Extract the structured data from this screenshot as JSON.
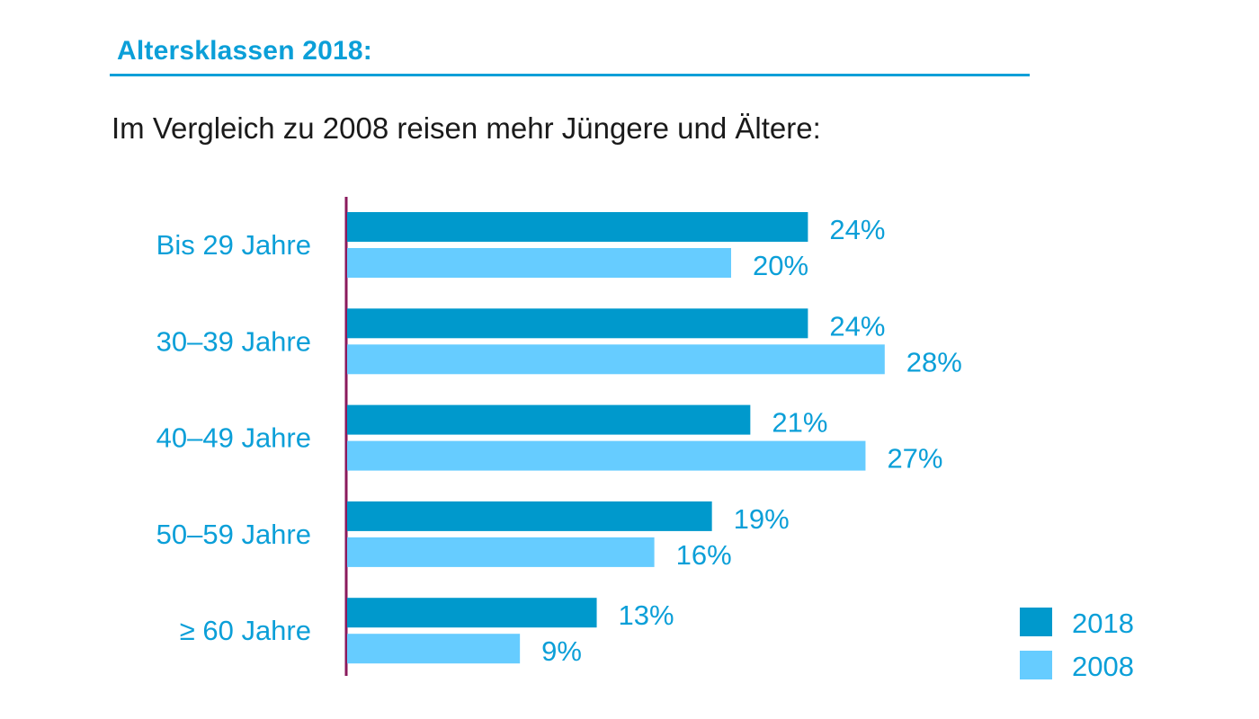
{
  "title": "Altersklassen 2018:",
  "subtitle": "Im Vergleich zu 2008 reisen mehr Jüngere und Ältere:",
  "colors": {
    "accent": "#0b9fd8",
    "series_2018": "#0099cc",
    "series_2008": "#66ccff",
    "axis": "#8a1a5c"
  },
  "chart_data": {
    "type": "bar",
    "orientation": "horizontal",
    "categories": [
      "Bis 29 Jahre",
      "30–39 Jahre",
      "40–49 Jahre",
      "50–59 Jahre",
      "≥ 60 Jahre"
    ],
    "series": [
      {
        "name": "2018",
        "values": [
          24,
          24,
          21,
          19,
          13
        ],
        "labels": [
          "24%",
          "24%",
          "21%",
          "19%",
          "13%"
        ]
      },
      {
        "name": "2008",
        "values": [
          20,
          28,
          27,
          16,
          9
        ],
        "labels": [
          "20%",
          "28%",
          "27%",
          "16%",
          "9%"
        ]
      }
    ],
    "xlim": [
      0,
      30
    ],
    "unit": "%",
    "grid": false,
    "legend": "bottom-right"
  }
}
